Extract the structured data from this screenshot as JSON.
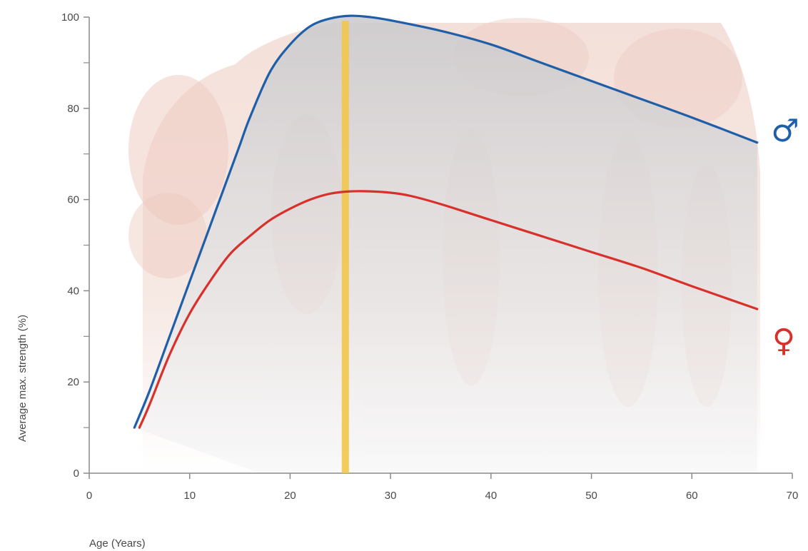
{
  "chart_data": {
    "type": "line",
    "title": "",
    "xlabel": "Age (Years)",
    "ylabel": "Average max. strength (%)",
    "xlim": [
      0,
      70
    ],
    "ylim": [
      0,
      100
    ],
    "x_ticks": [
      "0",
      "10",
      "20",
      "30",
      "40",
      "50",
      "60",
      "70"
    ],
    "y_ticks": [
      "0",
      "20",
      "40",
      "60",
      "80",
      "100"
    ],
    "peak_marker_x": 25.5,
    "grid": false,
    "series": [
      {
        "name": "♂",
        "color": "#1f5fa8",
        "x": [
          4.5,
          6,
          8,
          10,
          12,
          14,
          15,
          16,
          18,
          20,
          22,
          24,
          26,
          28,
          30,
          35,
          40,
          45,
          50,
          55,
          60,
          66.5
        ],
        "y": [
          10,
          18,
          30,
          42,
          54,
          66,
          72,
          78,
          88,
          94,
          98,
          99.7,
          100.3,
          100,
          99.3,
          97,
          94,
          90,
          86,
          82,
          78,
          72.5
        ]
      },
      {
        "name": "♀",
        "color": "#d8302a",
        "x": [
          5,
          6,
          8,
          10,
          12,
          14,
          16,
          18,
          20,
          22,
          24,
          26,
          28,
          30,
          32,
          35,
          40,
          45,
          50,
          55,
          60,
          66.5
        ],
        "y": [
          10,
          15,
          26,
          35,
          42,
          48,
          52,
          55.5,
          58,
          60,
          61.3,
          61.8,
          61.8,
          61.5,
          60.8,
          59,
          55.5,
          52,
          48.5,
          45,
          41,
          36
        ]
      }
    ]
  }
}
